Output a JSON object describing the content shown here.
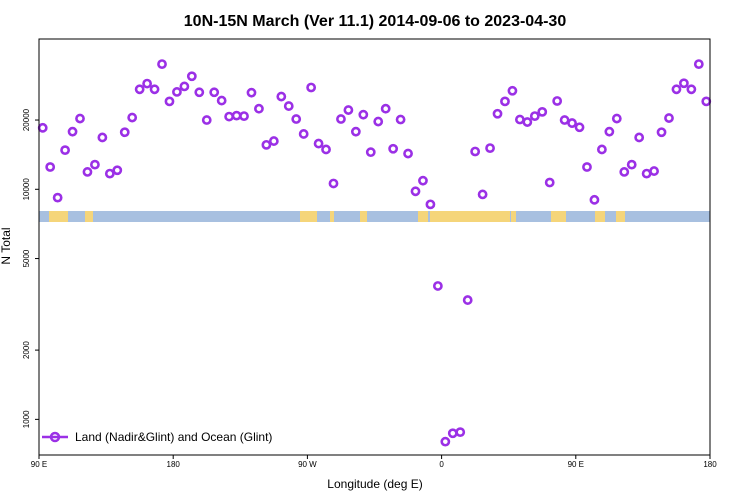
{
  "chart_data": {
    "type": "scatter",
    "title": "10N-15N March (Ver 11.1)   2014-09-06 to 2023-04-30",
    "xlabel": "Longitude (deg E)",
    "ylabel": "N Total",
    "x_tick_labels": [
      "90 E",
      "180",
      "90 W",
      "0",
      "90 E",
      "180"
    ],
    "x_tick_values": [
      90,
      180,
      270,
      360,
      450,
      540
    ],
    "xlim": [
      90,
      540
    ],
    "y_scale": "log",
    "ylim": [
      700,
      45000
    ],
    "y_tick_values": [
      1000,
      2000,
      5000,
      10000,
      20000
    ],
    "y_tick_labels": [
      "1000",
      "2000",
      "5000",
      "10000",
      "20000"
    ],
    "grid": false,
    "legend": {
      "position": "bottom-left",
      "entries": [
        "Land (Nadir&Glint) and Ocean (Glint)"
      ]
    },
    "map_strip": {
      "description_colors": {
        "ocean": "#a8c0e0",
        "land": "#f5d57a"
      }
    },
    "series": [
      {
        "name": "Land (Nadir&Glint) and Ocean (Glint)",
        "color": "#9b30e6",
        "marker": "open-circle",
        "x": [
          92.5,
          97.5,
          102.5,
          107.5,
          112.5,
          117.5,
          122.5,
          127.5,
          132.5,
          137.5,
          142.5,
          147.5,
          152.5,
          157.5,
          162.5,
          167.5,
          172.5,
          177.5,
          182.5,
          187.5,
          192.5,
          197.5,
          202.5,
          207.5,
          212.5,
          217.5,
          222.5,
          227.5,
          232.5,
          237.5,
          242.5,
          247.5,
          252.5,
          257.5,
          262.5,
          267.5,
          272.5,
          277.5,
          282.5,
          287.5,
          292.5,
          297.5,
          302.5,
          307.5,
          312.5,
          317.5,
          322.5,
          327.5,
          332.5,
          337.5,
          342.5,
          347.5,
          352.5,
          357.5,
          362.5,
          367.5,
          372.5,
          377.5,
          382.5,
          387.5,
          392.5,
          397.5,
          402.5,
          407.5,
          412.5,
          417.5,
          422.5,
          427.5,
          432.5,
          437.5,
          442.5,
          447.5,
          452.5,
          457.5,
          462.5,
          467.5,
          472.5,
          477.5,
          482.5,
          487.5,
          492.5,
          497.5,
          502.5,
          507.5,
          512.5,
          517.5,
          522.5,
          527.5,
          532.5,
          537.5
        ],
        "y": [
          18500,
          12500,
          9200,
          14800,
          17800,
          20300,
          11900,
          12800,
          16800,
          11700,
          12100,
          17700,
          20500,
          27200,
          28800,
          27200,
          35000,
          24100,
          26500,
          28000,
          31000,
          26400,
          20000,
          26400,
          24300,
          20700,
          20900,
          20800,
          26300,
          22400,
          15600,
          16200,
          25300,
          23000,
          20200,
          17400,
          27700,
          15800,
          14900,
          10600,
          20200,
          22100,
          17800,
          21100,
          14500,
          19700,
          22400,
          15000,
          20100,
          14300,
          9800,
          10900,
          8600,
          3800,
          800,
          870,
          880,
          3300,
          14600,
          9500,
          15100,
          21300,
          24100,
          26800,
          20100,
          19600,
          20800,
          21700,
          10700,
          24200,
          20000,
          19400,
          18600,
          12500,
          9000,
          14900,
          17800,
          20300,
          11900,
          12800,
          16800,
          11700,
          12000,
          17700,
          20400,
          27200,
          28900,
          27200,
          35000,
          24100
        ]
      }
    ]
  }
}
